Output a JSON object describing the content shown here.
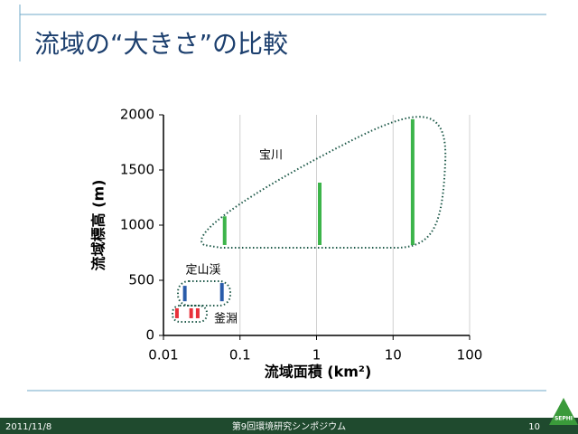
{
  "header": {
    "title": "流域の“大きさ”の比較"
  },
  "footer": {
    "date": "2011/11/8",
    "event": "第9回環境研究シンポジウム",
    "page": "10",
    "logo": "SEPHI"
  },
  "chart_data": {
    "type": "range",
    "x_label": "流域面積 (km²)",
    "y_label": "流域標高 (m)",
    "xlim": [
      0.01,
      100
    ],
    "xticks": [
      0.01,
      0.1,
      1,
      10,
      100
    ],
    "xscale": "log",
    "ylim": [
      0,
      2000
    ],
    "yticks": [
      0,
      500,
      1000,
      1500,
      2000
    ],
    "grid": true,
    "series": [
      {
        "name": "宝川",
        "color": "#3cb44a",
        "x": [
          0.063,
          1.1,
          18
        ],
        "low": [
          820,
          820,
          820
        ],
        "high": [
          1080,
          1385,
          1960
        ]
      },
      {
        "name": "定山渓",
        "color": "#2a5caa",
        "x": [
          0.019,
          0.058
        ],
        "low": [
          310,
          310
        ],
        "high": [
          450,
          475
        ]
      },
      {
        "name": "釜淵",
        "color": "#e8303a",
        "x": [
          0.015,
          0.023,
          0.028
        ],
        "low": [
          156,
          156,
          156
        ],
        "high": [
          246,
          246,
          246
        ]
      }
    ]
  }
}
